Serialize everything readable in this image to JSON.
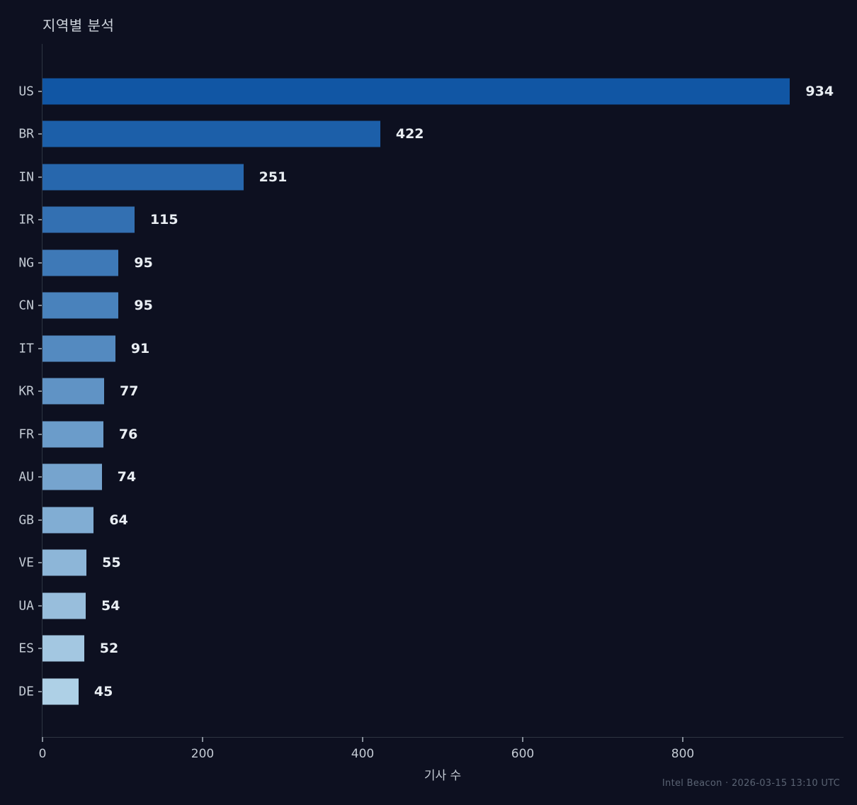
{
  "title": "지역별 분석",
  "footer": "Intel Beacon · 2026-03-15 13:10 UTC",
  "colors": {
    "background": "#0d1020",
    "bar_darkest": "#1156a4",
    "bar_lightest": "#aed0e6",
    "value_label": "#e9eef3",
    "axis_text": "#c3cad3",
    "footer_text": "#5a6373"
  },
  "chart_data": {
    "type": "bar",
    "orientation": "horizontal",
    "title": "지역별 분석",
    "xlabel": "기사 수",
    "ylabel": "",
    "categories": [
      "US",
      "BR",
      "IN",
      "IR",
      "NG",
      "CN",
      "IT",
      "KR",
      "FR",
      "AU",
      "GB",
      "VE",
      "UA",
      "ES",
      "DE"
    ],
    "values": [
      934,
      422,
      251,
      115,
      95,
      95,
      91,
      77,
      76,
      74,
      64,
      55,
      54,
      52,
      45
    ],
    "bar_colors": [
      "#1156a4",
      "#1c5fa9",
      "#2767ad",
      "#3370b2",
      "#3e79b7",
      "#4982bc",
      "#548ac0",
      "#6093c5",
      "#6b9cca",
      "#76a4ce",
      "#81add3",
      "#8db6d8",
      "#98bedc",
      "#a3c7e1",
      "#aed0e6"
    ],
    "xlim": [
      0,
      1000
    ],
    "xticks": [
      0,
      200,
      400,
      600,
      800
    ],
    "grid": false,
    "legend": false,
    "value_labels": true
  }
}
